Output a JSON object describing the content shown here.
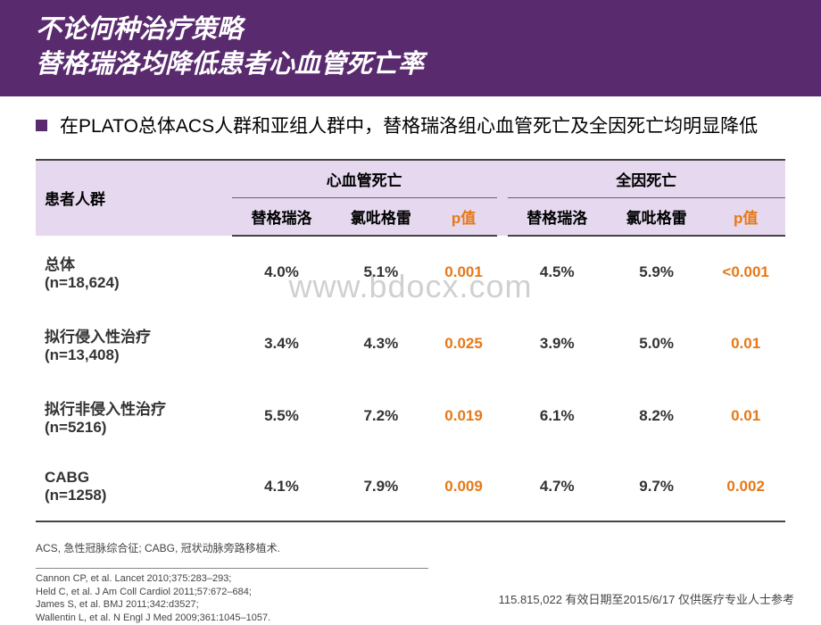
{
  "header": {
    "title_line1": "不论何种治疗策略",
    "title_line2": "替格瑞洛均降低患者心血管死亡率"
  },
  "bullet": {
    "text": "在PLATO总体ACS人群和亚组人群中，替格瑞洛组心血管死亡及全因死亡均明显降低"
  },
  "table": {
    "header_bg": "#e6d9ef",
    "border_color": "#444444",
    "pvalue_color": "#e67817",
    "rowlabel": "患者人群",
    "group1": "心血管死亡",
    "group2": "全因死亡",
    "sub": {
      "c1": "替格瑞洛",
      "c2": "氯吡格雷",
      "c3": "p值",
      "c4": "替格瑞洛",
      "c5": "氯吡格雷",
      "c6": "p值"
    },
    "rows": [
      {
        "name": "总体",
        "n": "(n=18,624)",
        "v": [
          "4.0%",
          "5.1%",
          "0.001",
          "4.5%",
          "5.9%",
          "<0.001"
        ]
      },
      {
        "name": "拟行侵入性治疗",
        "n": "(n=13,408)",
        "v": [
          "3.4%",
          "4.3%",
          "0.025",
          "3.9%",
          "5.0%",
          "0.01"
        ]
      },
      {
        "name": "拟行非侵入性治疗",
        "n": "(n=5216)",
        "v": [
          "5.5%",
          "7.2%",
          "0.019",
          "6.1%",
          "8.2%",
          "0.01"
        ]
      },
      {
        "name": "CABG",
        "n": "(n=1258)",
        "v": [
          "4.1%",
          "7.9%",
          "0.009",
          "4.7%",
          "9.7%",
          "0.002"
        ]
      }
    ]
  },
  "abbr": "ACS, 急性冠脉综合征; CABG, 冠状动脉旁路移植术.",
  "refs": {
    "r1": "Cannon CP, et al. Lancet 2010;375:283–293;",
    "r2": "Held C, et al. J Am Coll Cardiol 2011;57:672–684;",
    "r3": "James S, et al. BMJ 2011;342:d3527;",
    "r4": "Wallentin L, et al. N Engl J Med 2009;361:1045–1057."
  },
  "footer": "115.815,022 有效日期至2015/6/17 仅供医疗专业人士参考",
  "watermark": "www.bdocx.com"
}
